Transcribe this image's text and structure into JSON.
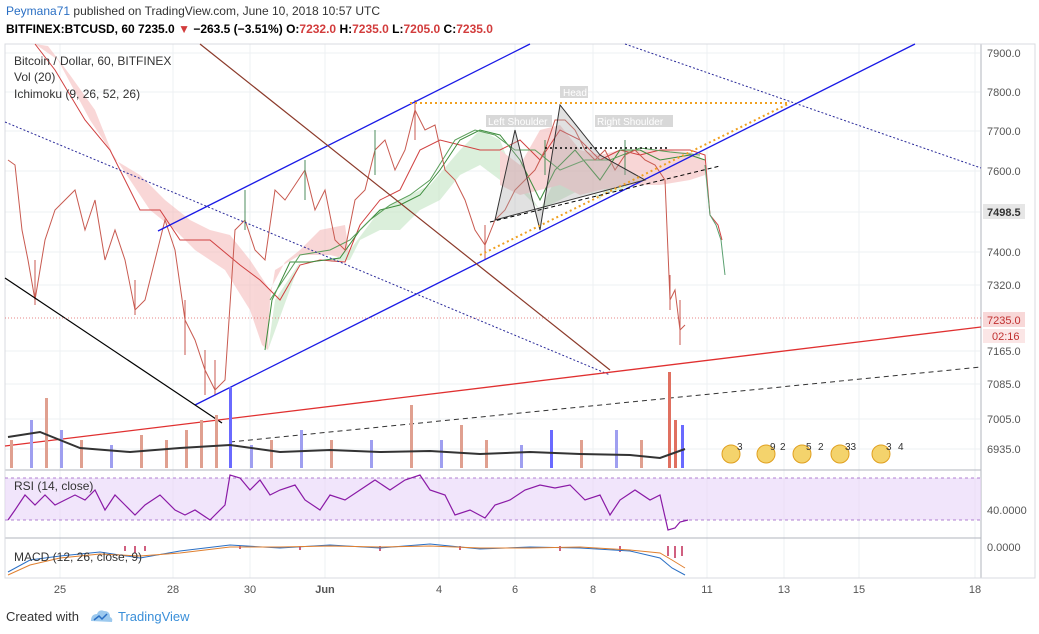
{
  "header": {
    "user": "Peymana71",
    "published_text": "published on TradingView.com, June 10, 2018 10:57 UTC",
    "symbol": "BITFINEX:BTCUSD, 60",
    "last": "7235.0",
    "change": "−263.5 (−3.51%)",
    "o_label": "O:",
    "o_value": "7232.0",
    "h_label": "H:",
    "h_value": "7235.0",
    "l_label": "L:",
    "l_value": "7205.0",
    "c_label": "C:",
    "c_value": "7235.0"
  },
  "legend": {
    "title": "Bitcoin / Dollar, 60, BITFINEX",
    "vol": "Vol (20)",
    "ichimoku": "Ichimoku (9, 26, 52, 26)"
  },
  "price_axis": [
    "7900.0",
    "7800.0",
    "7700.0",
    "7600.0",
    "7400.0",
    "7320.0",
    "7165.0",
    "7085.0",
    "7005.0",
    "6935.0"
  ],
  "price_badges": {
    "current": "7498.5",
    "last": "7235.0",
    "countdown": "02:16"
  },
  "annotations": {
    "head": "Head",
    "left_shoulder": "Left Shoulder",
    "right_shoulder": "Right Shoulder"
  },
  "rsi": {
    "label": "RSI (14, close)",
    "axis": "40.0000"
  },
  "macd": {
    "label": "MACD (12, 26, close, 9)",
    "axis": "0.0000"
  },
  "time_axis": [
    "25",
    "28",
    "30",
    "Jun",
    "4",
    "6",
    "8",
    "11",
    "13",
    "15",
    "18"
  ],
  "events": [
    "3",
    "9",
    "2",
    "5",
    "2",
    "33",
    "3",
    "4"
  ],
  "footer": {
    "created": "Created with",
    "brand": "TradingView"
  },
  "colors": {
    "up": "#6ba583",
    "down": "#d75442",
    "channel": "#1a1ae6",
    "trend_red": "#e03030",
    "brown": "#8b3a2a"
  }
}
